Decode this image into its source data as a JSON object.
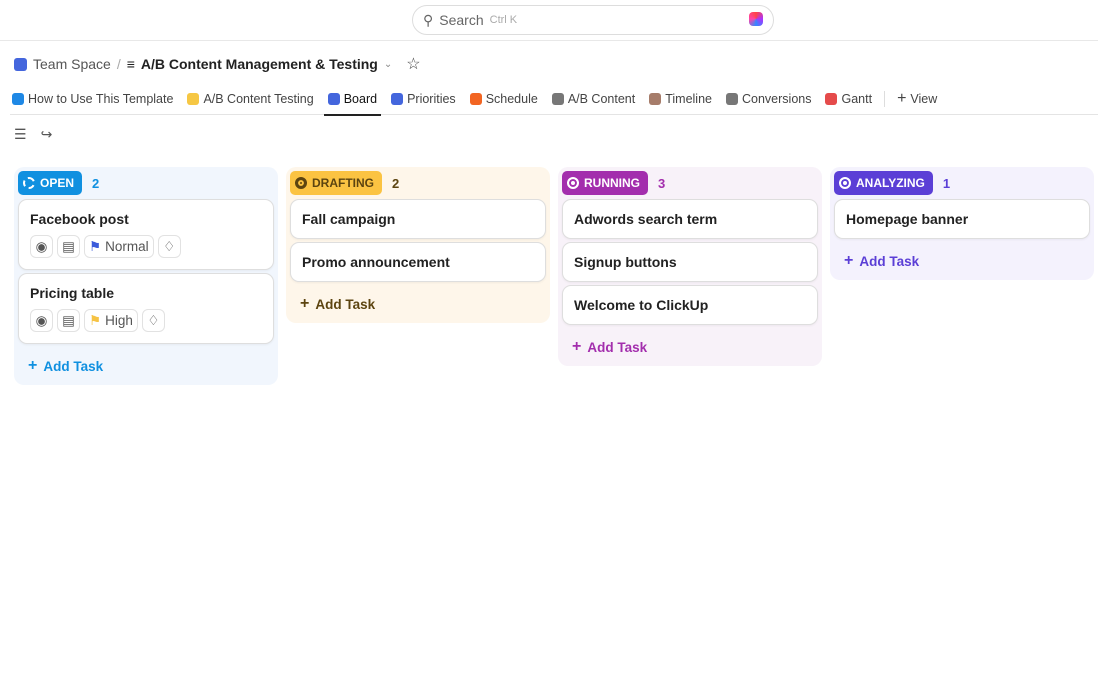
{
  "search": {
    "placeholder": "Search",
    "shortcut": "Ctrl K"
  },
  "breadcrumb": {
    "space": "Team Space",
    "separator": "/",
    "list": "A/B Content Management & Testing"
  },
  "tabs": [
    {
      "label": "How to Use This Template",
      "color": "#1e88e5"
    },
    {
      "label": "A/B Content Testing",
      "color": "#f6c744"
    },
    {
      "label": "Board",
      "color": "#4466dd",
      "active": true
    },
    {
      "label": "Priorities",
      "color": "#4466dd"
    },
    {
      "label": "Schedule",
      "color": "#f26522"
    },
    {
      "label": "A/B Content",
      "color": "#777777"
    },
    {
      "label": "Timeline",
      "color": "#a67c6a"
    },
    {
      "label": "Conversions",
      "color": "#777777"
    },
    {
      "label": "Gantt",
      "color": "#e54b4b"
    }
  ],
  "add_view": "View",
  "columns": [
    {
      "status": "OPEN",
      "count": "2",
      "color": "#1090e0",
      "bg": "#f1f6fd",
      "add": "Add Task",
      "tasks": [
        {
          "title": "Facebook post",
          "priority": "Normal",
          "flag": "#3b5bdb"
        },
        {
          "title": "Pricing table",
          "priority": "High",
          "flag": "#f6c344"
        }
      ]
    },
    {
      "status": "DRAFTING",
      "count": "2",
      "color": "#fbc342",
      "bg": "#fef6ea",
      "text": "#5c4410",
      "add": "Add Task",
      "tasks": [
        {
          "title": "Fall campaign"
        },
        {
          "title": "Promo announcement"
        }
      ]
    },
    {
      "status": "RUNNING",
      "count": "3",
      "color": "#a32ead",
      "bg": "#f8f2f9",
      "add": "Add Task",
      "tasks": [
        {
          "title": "Adwords search term"
        },
        {
          "title": "Signup buttons"
        },
        {
          "title": "Welcome to ClickUp"
        }
      ]
    },
    {
      "status": "ANALYZING",
      "count": "1",
      "color": "#5b3fd6",
      "bg": "#f4f2fd",
      "add": "Add Task",
      "tasks": [
        {
          "title": "Homepage banner"
        }
      ]
    }
  ]
}
